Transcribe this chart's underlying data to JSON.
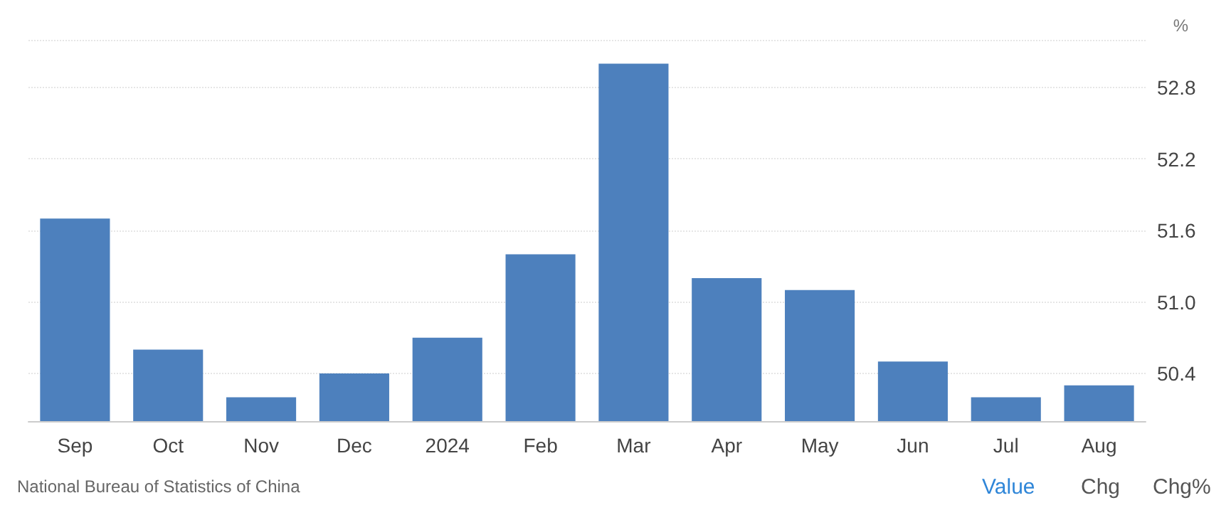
{
  "chart_data": {
    "type": "bar",
    "ylabel": "%",
    "categories": [
      "Sep",
      "Oct",
      "Nov",
      "Dec",
      "2024",
      "Feb",
      "Mar",
      "Apr",
      "May",
      "Jun",
      "Jul",
      "Aug"
    ],
    "values": [
      51.7,
      50.6,
      50.2,
      50.4,
      50.7,
      51.4,
      53.0,
      51.2,
      51.1,
      50.5,
      50.2,
      50.3
    ],
    "color": "#4d80bd",
    "ylim": [
      50.0,
      53.2
    ],
    "yticks": [
      50.4,
      {
        "value": 51.0,
        "label": "51.0"
      },
      51.6,
      52.2,
      52.8,
      {
        "value": 53.2,
        "label": null
      }
    ],
    "grid": "y",
    "annotations": [
      "National Bureau of Statistics of China",
      "Value",
      "Chg",
      "Chg%"
    ]
  }
}
